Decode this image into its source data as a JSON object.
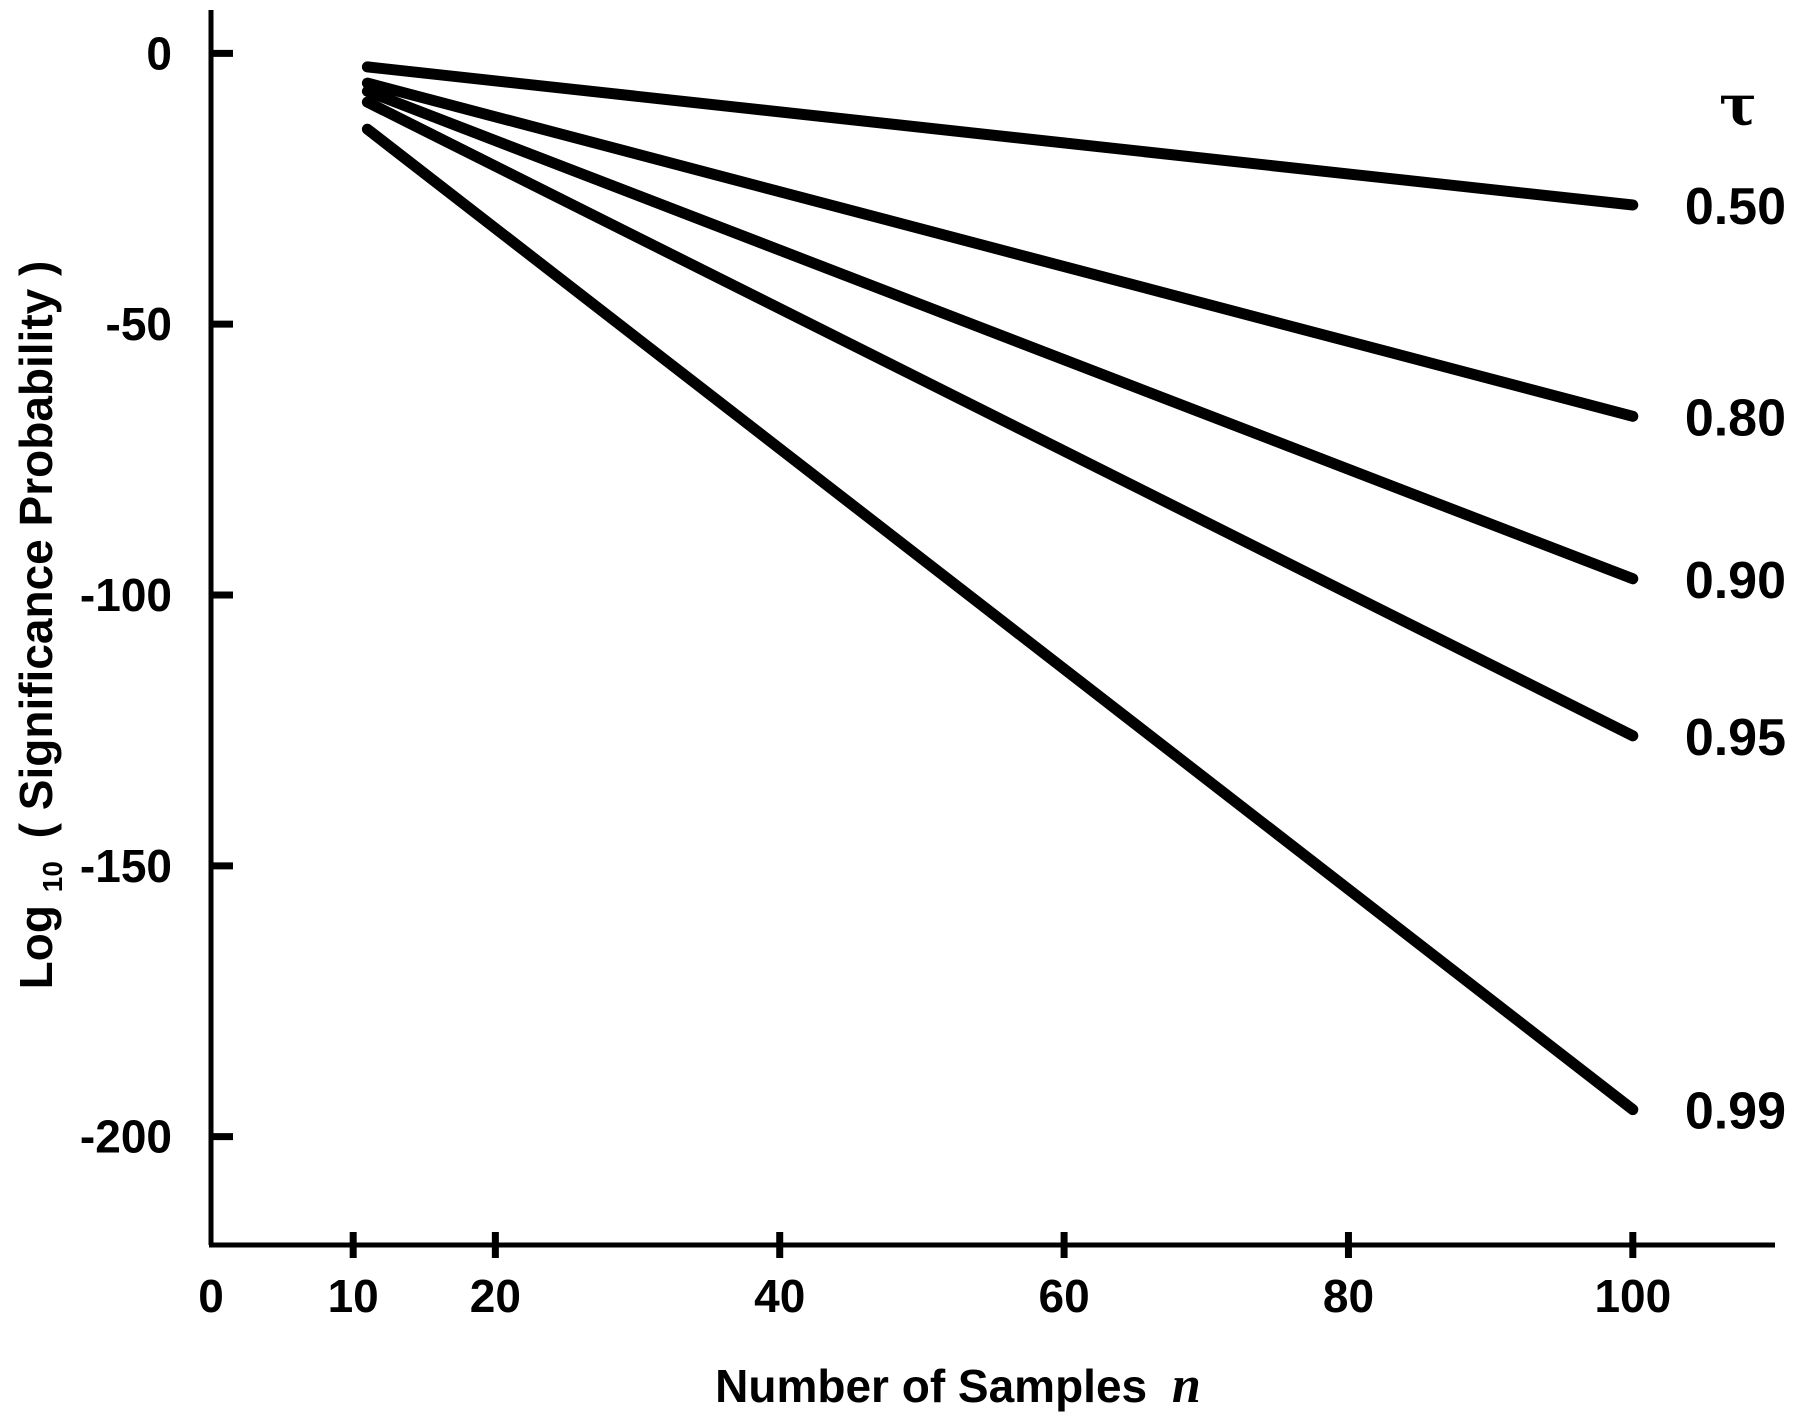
{
  "chart_data": {
    "type": "line",
    "title": "",
    "xlabel_text": "Number of Samples",
    "xlabel_var": "n",
    "ylabel_prefix": "Log",
    "ylabel_sub": "10",
    "ylabel_text": "( Significance Probability )",
    "legend_title": "τ",
    "xlim": [
      0,
      110
    ],
    "ylim": [
      -220,
      8
    ],
    "xticks": [
      0,
      10,
      20,
      40,
      60,
      80,
      100
    ],
    "xtick_labels": [
      "0",
      "10",
      "20",
      "40",
      "60",
      "80",
      "100"
    ],
    "yticks": [
      0,
      -50,
      -100,
      -150,
      -200
    ],
    "ytick_labels": [
      "0",
      "-50",
      "-100",
      "-150",
      "-200"
    ],
    "grid": false,
    "series": [
      {
        "name": "0.50",
        "x": [
          11,
          100
        ],
        "y": [
          -2.5,
          -28
        ]
      },
      {
        "name": "0.80",
        "x": [
          11,
          100
        ],
        "y": [
          -5.5,
          -67
        ]
      },
      {
        "name": "0.90",
        "x": [
          11,
          100
        ],
        "y": [
          -7,
          -97
        ]
      },
      {
        "name": "0.95",
        "x": [
          11,
          100
        ],
        "y": [
          -9,
          -126
        ]
      },
      {
        "name": "0.99",
        "x": [
          11,
          100
        ],
        "y": [
          -14,
          -195
        ]
      }
    ]
  }
}
